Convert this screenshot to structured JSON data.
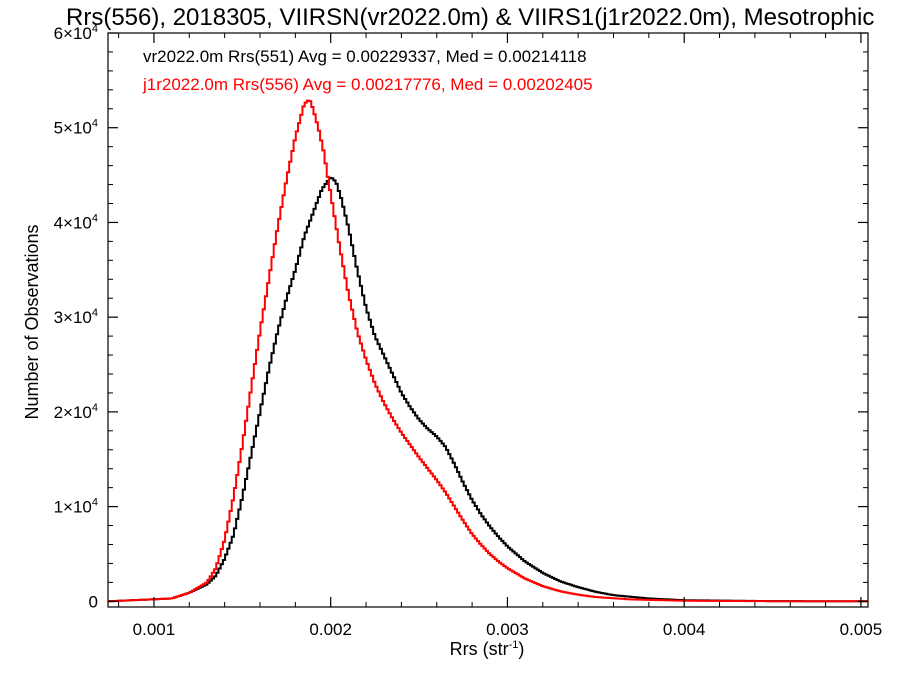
{
  "chart_data": {
    "type": "histogram-step",
    "title": "Rrs(556), 2018305, VIIRSN(vr2022.0m) & VIIRS1(j1r2022.0m), Mesotrophic",
    "xlabel": "Rrs (str",
    "xlabel_sup": "-1",
    "xlabel_close": ")",
    "ylabel": "Number of Observations",
    "xlim": [
      0.00074,
      0.00504
    ],
    "ylim": [
      -600,
      60000
    ],
    "x_ticks": [
      {
        "value": 0.001,
        "label": "0.001"
      },
      {
        "value": 0.002,
        "label": "0.002"
      },
      {
        "value": 0.003,
        "label": "0.003"
      },
      {
        "value": 0.004,
        "label": "0.004"
      },
      {
        "value": 0.005,
        "label": "0.005"
      }
    ],
    "y_ticks": [
      {
        "value": 0,
        "label": "0",
        "sup": ""
      },
      {
        "value": 10000,
        "label": "1×10",
        "sup": "4"
      },
      {
        "value": 20000,
        "label": "2×10",
        "sup": "4"
      },
      {
        "value": 30000,
        "label": "3×10",
        "sup": "4"
      },
      {
        "value": 40000,
        "label": "4×10",
        "sup": "4"
      },
      {
        "value": 50000,
        "label": "5×10",
        "sup": "4"
      },
      {
        "value": 60000,
        "label": "6×10",
        "sup": "4"
      }
    ],
    "grid": false,
    "legend_placement": "top-left",
    "series": [
      {
        "name": "vr2022.0m Rrs(551) Avg = 0.00229337, Med = 0.00214118",
        "color": "#000000",
        "points": [
          [
            0.00074,
            0
          ],
          [
            0.0011,
            300
          ],
          [
            0.0012,
            900
          ],
          [
            0.0013,
            1800
          ],
          [
            0.00135,
            2700
          ],
          [
            0.0014,
            4500
          ],
          [
            0.00145,
            7000
          ],
          [
            0.0015,
            11000
          ],
          [
            0.00155,
            15500
          ],
          [
            0.0016,
            20000
          ],
          [
            0.00165,
            24500
          ],
          [
            0.0017,
            28500
          ],
          [
            0.00175,
            32000
          ],
          [
            0.0018,
            35000
          ],
          [
            0.00185,
            38500
          ],
          [
            0.0019,
            41000
          ],
          [
            0.00195,
            43500
          ],
          [
            0.002,
            44800
          ],
          [
            0.00203,
            44300
          ],
          [
            0.00206,
            42500
          ],
          [
            0.0021,
            39500
          ],
          [
            0.00215,
            35000
          ],
          [
            0.0022,
            31000
          ],
          [
            0.00225,
            28000
          ],
          [
            0.0023,
            26000
          ],
          [
            0.00235,
            24000
          ],
          [
            0.0024,
            22000
          ],
          [
            0.00245,
            20500
          ],
          [
            0.0025,
            19200
          ],
          [
            0.00255,
            18200
          ],
          [
            0.0026,
            17400
          ],
          [
            0.00265,
            16300
          ],
          [
            0.0027,
            14500
          ],
          [
            0.00275,
            12500
          ],
          [
            0.0028,
            10700
          ],
          [
            0.00285,
            9200
          ],
          [
            0.0029,
            7900
          ],
          [
            0.00295,
            6800
          ],
          [
            0.003,
            5800
          ],
          [
            0.0031,
            4200
          ],
          [
            0.0032,
            3000
          ],
          [
            0.0033,
            2100
          ],
          [
            0.0034,
            1500
          ],
          [
            0.0035,
            1000
          ],
          [
            0.0036,
            650
          ],
          [
            0.0038,
            300
          ],
          [
            0.004,
            120
          ],
          [
            0.0045,
            20
          ],
          [
            0.00504,
            0
          ]
        ]
      },
      {
        "name": "j1r2022.0m Rrs(556) Avg = 0.00217776, Med = 0.00202405",
        "color": "#ff0000",
        "points": [
          [
            0.00074,
            0
          ],
          [
            0.0011,
            300
          ],
          [
            0.0012,
            900
          ],
          [
            0.0013,
            2000
          ],
          [
            0.00135,
            3500
          ],
          [
            0.0014,
            6500
          ],
          [
            0.00145,
            11000
          ],
          [
            0.0015,
            16500
          ],
          [
            0.00155,
            22500
          ],
          [
            0.0016,
            28500
          ],
          [
            0.00165,
            34000
          ],
          [
            0.0017,
            39500
          ],
          [
            0.00175,
            44500
          ],
          [
            0.0018,
            49000
          ],
          [
            0.00185,
            52500
          ],
          [
            0.00188,
            53000
          ],
          [
            0.0019,
            52000
          ],
          [
            0.00193,
            50000
          ],
          [
            0.00196,
            47500
          ],
          [
            0.002,
            43000
          ],
          [
            0.00205,
            37500
          ],
          [
            0.0021,
            32500
          ],
          [
            0.00215,
            28500
          ],
          [
            0.0022,
            25500
          ],
          [
            0.00225,
            23000
          ],
          [
            0.0023,
            21000
          ],
          [
            0.00235,
            19300
          ],
          [
            0.0024,
            17800
          ],
          [
            0.00245,
            16500
          ],
          [
            0.0025,
            15200
          ],
          [
            0.00255,
            14000
          ],
          [
            0.0026,
            12800
          ],
          [
            0.00265,
            11500
          ],
          [
            0.0027,
            10000
          ],
          [
            0.00275,
            8500
          ],
          [
            0.0028,
            7100
          ],
          [
            0.00285,
            6000
          ],
          [
            0.0029,
            5000
          ],
          [
            0.00295,
            4200
          ],
          [
            0.003,
            3500
          ],
          [
            0.0031,
            2400
          ],
          [
            0.0032,
            1600
          ],
          [
            0.0033,
            1050
          ],
          [
            0.0034,
            700
          ],
          [
            0.0035,
            450
          ],
          [
            0.0037,
            200
          ],
          [
            0.004,
            60
          ],
          [
            0.0045,
            10
          ],
          [
            0.00504,
            0
          ]
        ]
      }
    ]
  }
}
